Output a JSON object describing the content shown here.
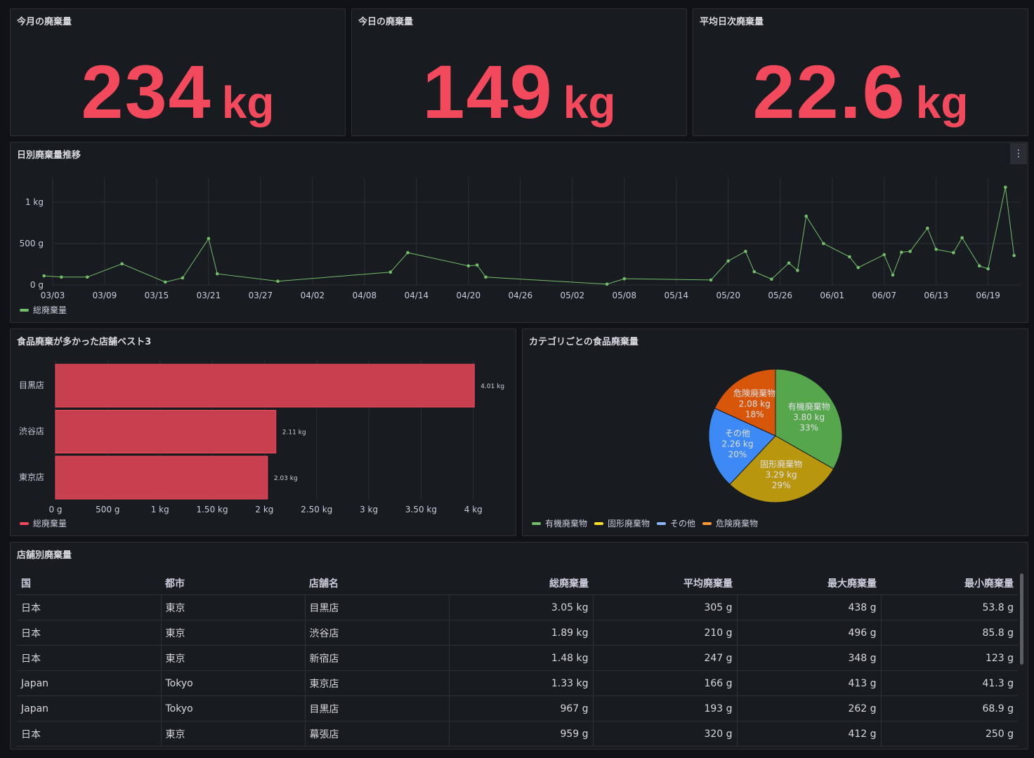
{
  "stats": [
    {
      "title": "今月の廃棄量",
      "value": "234",
      "unit": "kg"
    },
    {
      "title": "今日の廃棄量",
      "value": "149",
      "unit": "kg"
    },
    {
      "title": "平均日次廃棄量",
      "value": "22.6",
      "unit": "kg"
    }
  ],
  "colors": {
    "red": "#f2495c",
    "green": "#73bf69",
    "bar": "#c8404f"
  },
  "timeseries": {
    "title": "日別廃棄量推移",
    "menu_icon": "⋮",
    "chart_data": {
      "type": "line",
      "series_name": "総廃棄量",
      "ylabel": "",
      "xlabel": "",
      "y_ticks": [
        {
          "v": 0,
          "label": "0 g"
        },
        {
          "v": 500,
          "label": "500 g"
        },
        {
          "v": 1000,
          "label": "1 kg"
        }
      ],
      "ylim": [
        0,
        1300
      ],
      "x_ticks": [
        "03/03",
        "03/09",
        "03/15",
        "03/21",
        "03/27",
        "04/02",
        "04/08",
        "04/14",
        "04/20",
        "04/26",
        "05/02",
        "05/08",
        "05/14",
        "05/20",
        "05/26",
        "06/01",
        "06/07",
        "06/13",
        "06/19"
      ],
      "points": [
        [
          "03/02",
          110
        ],
        [
          "03/04",
          95
        ],
        [
          "03/07",
          95
        ],
        [
          "03/11",
          255
        ],
        [
          "03/16",
          35
        ],
        [
          "03/18",
          85
        ],
        [
          "03/21",
          560
        ],
        [
          "03/22",
          135
        ],
        [
          "03/29",
          45
        ],
        [
          "04/11",
          155
        ],
        [
          "04/13",
          390
        ],
        [
          "04/20",
          230
        ],
        [
          "04/21",
          240
        ],
        [
          "04/22",
          95
        ],
        [
          "05/06",
          10
        ],
        [
          "05/08",
          75
        ],
        [
          "05/18",
          60
        ],
        [
          "05/20",
          290
        ],
        [
          "05/22",
          405
        ],
        [
          "05/23",
          160
        ],
        [
          "05/25",
          70
        ],
        [
          "05/27",
          265
        ],
        [
          "05/28",
          175
        ],
        [
          "05/29",
          830
        ],
        [
          "05/31",
          500
        ],
        [
          "06/03",
          340
        ],
        [
          "06/04",
          210
        ],
        [
          "06/07",
          365
        ],
        [
          "06/08",
          120
        ],
        [
          "06/09",
          395
        ],
        [
          "06/10",
          405
        ],
        [
          "06/12",
          685
        ],
        [
          "06/13",
          430
        ],
        [
          "06/15",
          390
        ],
        [
          "06/16",
          570
        ],
        [
          "06/18",
          230
        ],
        [
          "06/19",
          195
        ],
        [
          "06/21",
          1180
        ],
        [
          "06/22",
          355
        ]
      ]
    }
  },
  "bars": {
    "title": "食品廃棄が多かった店舗ベスト3",
    "chart_data": {
      "type": "bar",
      "orientation": "horizontal",
      "series_name": "総廃棄量",
      "categories": [
        "目黒店",
        "渋谷店",
        "東京店"
      ],
      "values": [
        4.01,
        2.11,
        2.03
      ],
      "value_labels": [
        "4.01 kg",
        "2.11 kg",
        "2.03 kg"
      ],
      "xlim": [
        0,
        4.3
      ],
      "x_ticks": [
        {
          "v": 0,
          "label": "0 g"
        },
        {
          "v": 0.5,
          "label": "500 g"
        },
        {
          "v": 1,
          "label": "1 kg"
        },
        {
          "v": 1.5,
          "label": "1.50 kg"
        },
        {
          "v": 2,
          "label": "2 kg"
        },
        {
          "v": 2.5,
          "label": "2.50 kg"
        },
        {
          "v": 3,
          "label": "3 kg"
        },
        {
          "v": 3.5,
          "label": "3.50 kg"
        },
        {
          "v": 4,
          "label": "4 kg"
        }
      ]
    }
  },
  "pie": {
    "title": "カテゴリごとの食品廃棄量",
    "chart_data": {
      "type": "pie",
      "slices": [
        {
          "name": "有機廃棄物",
          "value": 3.8,
          "label": "3.80 kg",
          "pct": "33%",
          "color": "#56a64b"
        },
        {
          "name": "固形廃棄物",
          "value": 3.29,
          "label": "3.29 kg",
          "pct": "29%",
          "color": "#b8960e"
        },
        {
          "name": "その他",
          "value": 2.26,
          "label": "2.26 kg",
          "pct": "20%",
          "color": "#3d8af7"
        },
        {
          "name": "危険廃棄物",
          "value": 2.08,
          "label": "2.08 kg",
          "pct": "18%",
          "color": "#d8560a"
        }
      ],
      "legend": [
        {
          "name": "有機廃棄物",
          "color": "#73bf69"
        },
        {
          "name": "固形廃棄物",
          "color": "#fade2a"
        },
        {
          "name": "その他",
          "color": "#8ab8ff"
        },
        {
          "name": "危険廃棄物",
          "color": "#ff9830"
        }
      ]
    }
  },
  "table": {
    "title": "店舗別廃棄量",
    "columns": [
      "国",
      "都市",
      "店舗名",
      "総廃棄量",
      "平均廃棄量",
      "最大廃棄量",
      "最小廃棄量"
    ],
    "rows": [
      [
        "日本",
        "東京",
        "目黒店",
        "3.05 kg",
        "305 g",
        "438 g",
        "53.8 g"
      ],
      [
        "日本",
        "東京",
        "渋谷店",
        "1.89 kg",
        "210 g",
        "496 g",
        "85.8 g"
      ],
      [
        "日本",
        "東京",
        "新宿店",
        "1.48 kg",
        "247 g",
        "348 g",
        "123 g"
      ],
      [
        "Japan",
        "Tokyo",
        "東京店",
        "1.33 kg",
        "166 g",
        "413 g",
        "41.3 g"
      ],
      [
        "Japan",
        "Tokyo",
        "目黒店",
        "967 g",
        "193 g",
        "262 g",
        "68.9 g"
      ],
      [
        "日本",
        "東京",
        "幕張店",
        "959 g",
        "320 g",
        "412 g",
        "250 g"
      ]
    ]
  }
}
